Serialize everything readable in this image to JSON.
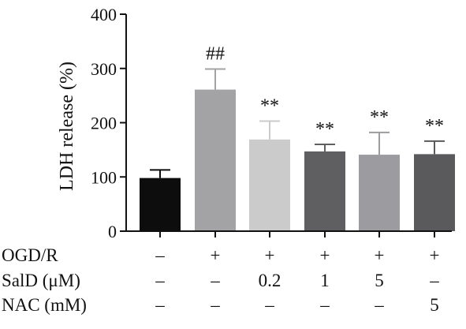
{
  "chart_data": {
    "type": "bar",
    "title": "",
    "ylabel": "LDH release (%)",
    "xlabel": "",
    "ylim": [
      0,
      400
    ],
    "yticks": [
      0,
      100,
      200,
      300,
      400
    ],
    "grid": false,
    "legend": "none",
    "groups": [
      1,
      2,
      3,
      4,
      5,
      6
    ],
    "values": [
      98,
      261,
      169,
      147,
      141,
      142
    ],
    "errors": [
      15,
      38,
      34,
      13,
      41,
      24
    ],
    "colors": [
      "#0d0d0d",
      "#a3a3a6",
      "#cbcbcb",
      "#5f5f61",
      "#9c9ca0",
      "#5a5a5c"
    ],
    "annotations": [
      "",
      "##",
      "**",
      "**",
      "**",
      "**"
    ],
    "conditions": [
      {
        "label": "OGD/R",
        "values": [
          "–",
          "+",
          "+",
          "+",
          "+",
          "+"
        ]
      },
      {
        "label": "SalD (μM)",
        "values": [
          "–",
          "–",
          "0.2",
          "1",
          "5",
          "–"
        ]
      },
      {
        "label": "NAC (mM)",
        "values": [
          "–",
          "–",
          "–",
          "–",
          "–",
          "5"
        ]
      }
    ]
  }
}
